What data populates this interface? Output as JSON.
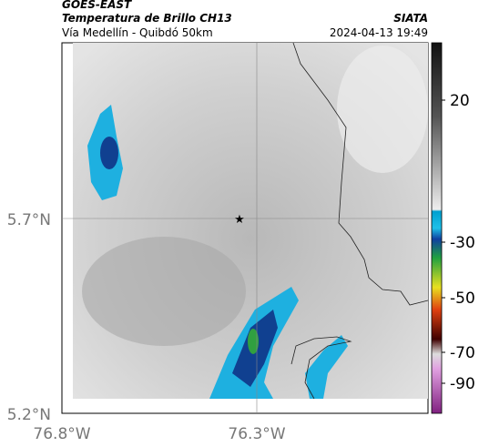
{
  "header": {
    "source": "GOES-EAST",
    "title": "Temperatura de Brillo CH13",
    "subtitle": "Vía Medellín - Quibdó 50km",
    "org": "SIATA",
    "datetime": "2024-04-13 19:49"
  },
  "map": {
    "lat_labels": [
      "5.7°N",
      "5.2°N"
    ],
    "lon_labels": [
      "76.8°W",
      "76.3°W"
    ]
  },
  "colorbar": {
    "ticks": [
      20,
      -30,
      -50,
      -70,
      -90
    ]
  }
}
